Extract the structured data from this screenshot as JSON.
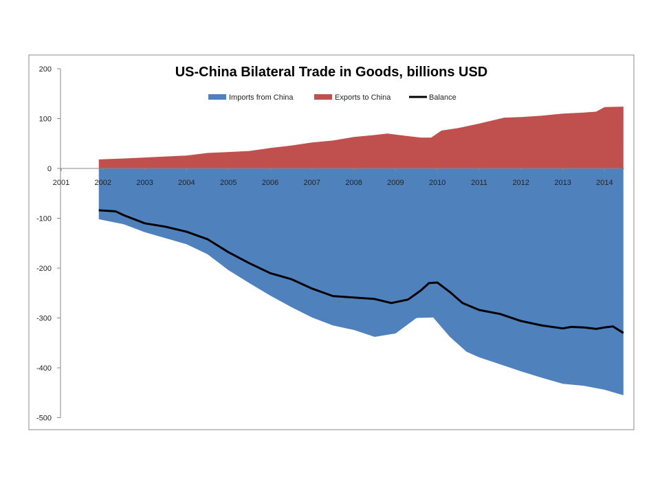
{
  "chart_data": {
    "type": "area",
    "title": "US-China Bilateral Trade in Goods, billions USD",
    "xlabel": "",
    "ylabel": "",
    "ylim": [
      -500,
      200
    ],
    "yticks": [
      200,
      100,
      0,
      -100,
      -200,
      -300,
      -400,
      -500
    ],
    "xticks": [
      "2001",
      "2002",
      "2003",
      "2004",
      "2005",
      "2006",
      "2007",
      "2008",
      "2009",
      "2010",
      "2011",
      "2012",
      "2013",
      "2014"
    ],
    "legend_position": "top-center",
    "colors": {
      "imports": "#4f81bd",
      "exports": "#c0504d",
      "balance": "#000000"
    },
    "series": [
      {
        "name": "Imports from China",
        "type": "area",
        "x": [
          2001.9,
          2002.5,
          2003,
          2003.5,
          2004,
          2004.5,
          2005,
          2005.5,
          2006,
          2006.5,
          2007,
          2007.5,
          2008,
          2008.5,
          2009,
          2009.5,
          2009.9,
          2010.3,
          2010.7,
          2011,
          2011.5,
          2012,
          2012.5,
          2013,
          2013.5,
          2014,
          2014.45
        ],
        "values": [
          -102,
          -112,
          -128,
          -140,
          -152,
          -172,
          -204,
          -230,
          -255,
          -278,
          -299,
          -315,
          -324,
          -338,
          -331,
          -300,
          -299,
          -338,
          -368,
          -379,
          -393,
          -407,
          -420,
          -432,
          -436,
          -444,
          -455
        ]
      },
      {
        "name": "Exports to China",
        "type": "area",
        "x": [
          2001.9,
          2002.5,
          2003,
          2003.5,
          2004,
          2004.5,
          2005,
          2005.5,
          2006,
          2006.5,
          2007,
          2007.5,
          2008,
          2008.5,
          2008.8,
          2009.2,
          2009.6,
          2009.85,
          2010.1,
          2010.5,
          2011,
          2011.6,
          2012,
          2012.5,
          2013,
          2013.5,
          2013.8,
          2014,
          2014.45
        ],
        "values": [
          18,
          20,
          22,
          24,
          26,
          31,
          33,
          35,
          41,
          46,
          52,
          56,
          63,
          67,
          70,
          66,
          62,
          62,
          76,
          81,
          90,
          102,
          103,
          106,
          110,
          112,
          114,
          123,
          124
        ]
      },
      {
        "name": "Balance",
        "type": "line",
        "x": [
          2001.9,
          2002.3,
          2002.5,
          2003,
          2003.5,
          2004,
          2004.5,
          2005,
          2005.5,
          2006,
          2006.5,
          2007,
          2007.5,
          2008,
          2008.5,
          2008.9,
          2009.3,
          2009.6,
          2009.8,
          2010,
          2010.3,
          2010.6,
          2011,
          2011.5,
          2012,
          2012.5,
          2013,
          2013.2,
          2013.5,
          2013.8,
          2014,
          2014.2,
          2014.45
        ],
        "values": [
          -84,
          -86,
          -94,
          -110,
          -117,
          -127,
          -142,
          -168,
          -190,
          -210,
          -222,
          -241,
          -256,
          -259,
          -262,
          -270,
          -263,
          -245,
          -230,
          -229,
          -248,
          -270,
          -284,
          -292,
          -306,
          -315,
          -321,
          -318,
          -319,
          -322,
          -319,
          -317,
          -330
        ]
      }
    ]
  }
}
